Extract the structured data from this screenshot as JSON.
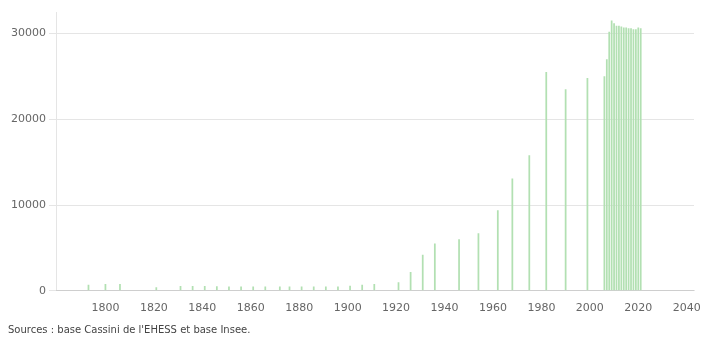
{
  "chart_data": {
    "type": "bar",
    "x": [
      1793,
      1800,
      1806,
      1821,
      1831,
      1836,
      1841,
      1846,
      1851,
      1856,
      1861,
      1866,
      1872,
      1876,
      1881,
      1886,
      1891,
      1896,
      1901,
      1906,
      1911,
      1921,
      1926,
      1931,
      1936,
      1946,
      1954,
      1962,
      1968,
      1975,
      1982,
      1990,
      1999,
      2006,
      2007,
      2008,
      2009,
      2010,
      2011,
      2012,
      2013,
      2014,
      2015,
      2016,
      2017,
      2018,
      2019,
      2020,
      2021
    ],
    "values": [
      700,
      780,
      780,
      400,
      550,
      550,
      550,
      530,
      510,
      500,
      490,
      490,
      490,
      490,
      500,
      490,
      490,
      490,
      600,
      700,
      800,
      1000,
      2200,
      4200,
      5500,
      6000,
      6700,
      9400,
      13100,
      15800,
      25500,
      23500,
      24800,
      25000,
      27000,
      30200,
      31500,
      31200,
      30900,
      30900,
      30800,
      30700,
      30700,
      30600,
      30600,
      30500,
      30500,
      30700,
      30600
    ],
    "color": "#b2e0b2",
    "xlim": [
      1780,
      2043
    ],
    "xticks": [
      1800,
      1820,
      1840,
      1860,
      1880,
      1900,
      1920,
      1940,
      1960,
      1980,
      2000,
      2020,
      2040
    ],
    "ylim": [
      0,
      32500
    ],
    "yticks": [
      0,
      10000,
      20000,
      30000
    ],
    "grid": true,
    "annotations": [
      "Sources : base Cassini de l'EHESS et base Insee."
    ]
  }
}
